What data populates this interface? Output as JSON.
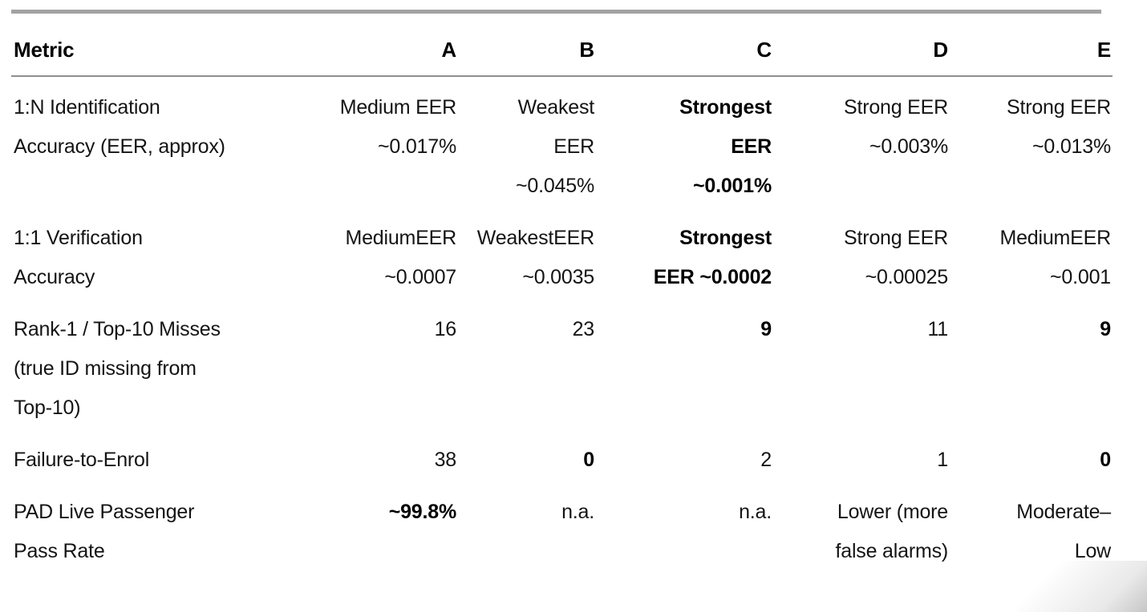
{
  "colors": {
    "top_bar": "#a2a2a2",
    "header_rule": "#8f8f8f",
    "text": "#141414",
    "background": "#ffffff"
  },
  "table": {
    "columns": [
      "Metric",
      "A",
      "B",
      "C",
      "D",
      "E"
    ],
    "rows": [
      {
        "metric": "1:N Identification\nAccuracy (EER, approx)",
        "values": [
          {
            "text": "Medium EER\n~0.017%",
            "bold": false
          },
          {
            "text": "Weakest\nEER\n~0.045%",
            "bold": false
          },
          {
            "text": "Strongest\nEER\n~0.001%",
            "bold": true
          },
          {
            "text": "Strong EER\n~0.003%",
            "bold": false
          },
          {
            "text": "Strong EER\n~0.013%",
            "bold": false
          }
        ]
      },
      {
        "metric": "1:1 Verification\nAccuracy",
        "values": [
          {
            "text": "MediumEER\n~0.0007",
            "bold": false
          },
          {
            "text": "WeakestEER\n~0.0035",
            "bold": false
          },
          {
            "text": "Strongest\nEER ~0.0002",
            "bold": true
          },
          {
            "text": "Strong EER\n~0.00025",
            "bold": false
          },
          {
            "text": "MediumEER\n~0.001",
            "bold": false
          }
        ]
      },
      {
        "metric": "Rank-1 / Top-10 Misses\n(true ID missing from\nTop-10)",
        "values": [
          {
            "text": "16",
            "bold": false
          },
          {
            "text": "23",
            "bold": false
          },
          {
            "text": "9",
            "bold": true
          },
          {
            "text": "11",
            "bold": false
          },
          {
            "text": "9",
            "bold": true
          }
        ]
      },
      {
        "metric": "Failure-to-Enrol",
        "values": [
          {
            "text": "38",
            "bold": false
          },
          {
            "text": "0",
            "bold": true
          },
          {
            "text": "2",
            "bold": false
          },
          {
            "text": "1",
            "bold": false
          },
          {
            "text": "0",
            "bold": true
          }
        ]
      },
      {
        "metric": "PAD Live Passenger\nPass Rate",
        "values": [
          {
            "text": "~99.8%",
            "bold": true
          },
          {
            "text": "n.a.",
            "bold": false
          },
          {
            "text": "n.a.",
            "bold": false
          },
          {
            "text": "Lower (more\nfalse alarms)",
            "bold": false
          },
          {
            "text": "Moderate–\nLow",
            "bold": false
          }
        ]
      }
    ]
  }
}
